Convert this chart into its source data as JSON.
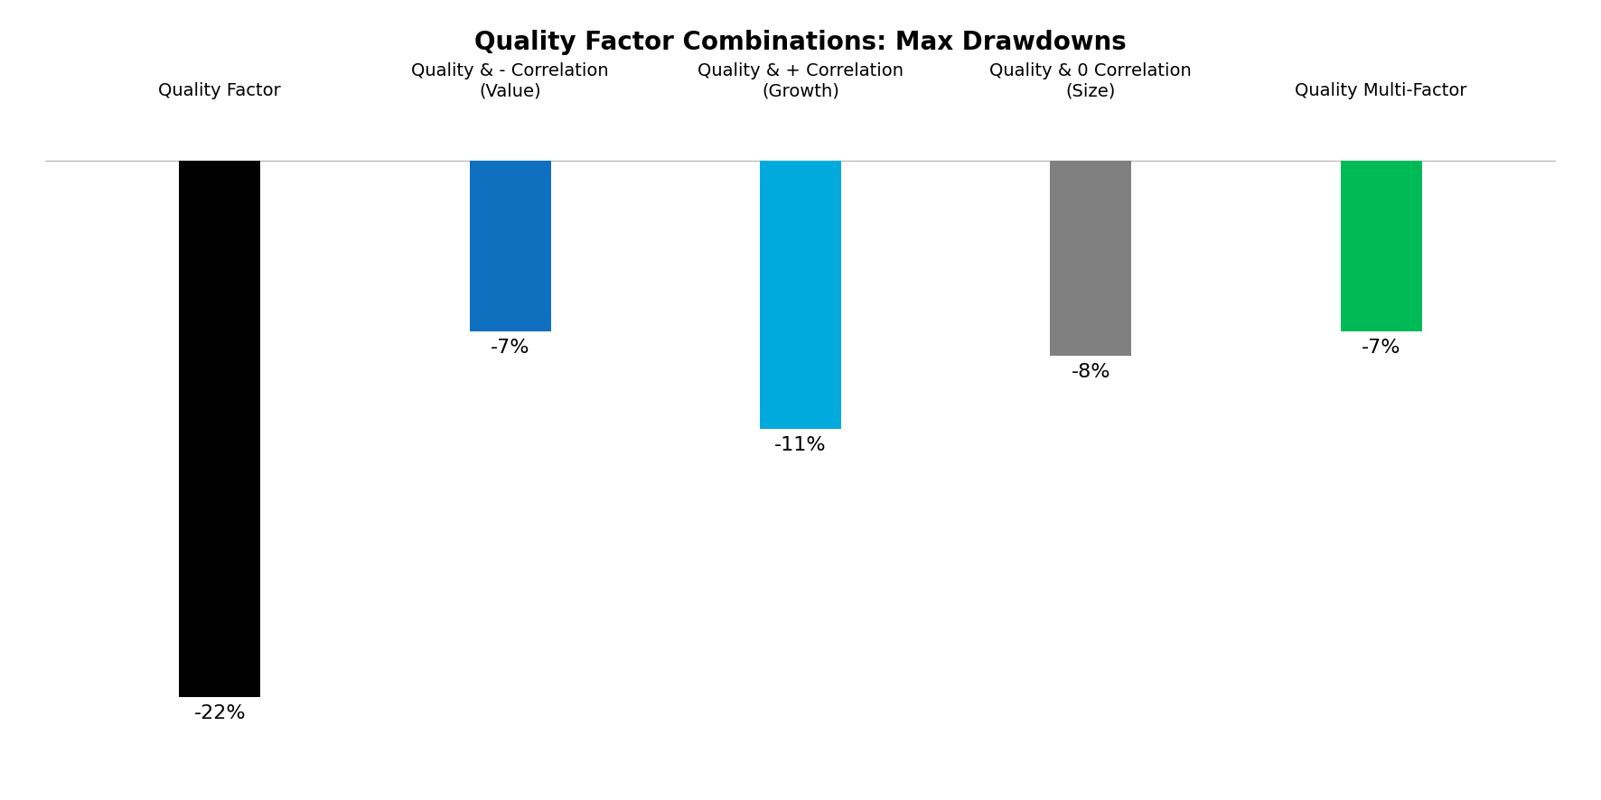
{
  "title": "Quality Factor Combinations: Max Drawdowns",
  "categories": [
    "Quality Factor",
    "Quality & - Correlation\n(Value)",
    "Quality & + Correlation\n(Growth)",
    "Quality & 0 Correlation\n(Size)",
    "Quality Multi-Factor"
  ],
  "values": [
    -22,
    -7,
    -11,
    -8,
    -7
  ],
  "bar_colors": [
    "#000000",
    "#1070C0",
    "#00AADD",
    "#808080",
    "#00BB55"
  ],
  "label_texts": [
    "-22%",
    "-7%",
    "-11%",
    "-8%",
    "-7%"
  ],
  "title_fontsize": 20,
  "label_fontsize": 16,
  "category_fontsize": 14,
  "background_color": "#ffffff",
  "ylim": [
    -25,
    2
  ],
  "bar_width": 0.28
}
